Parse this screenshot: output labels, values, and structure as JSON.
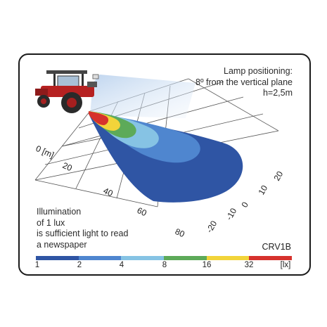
{
  "lamp_positioning": {
    "line1": "Lamp positioning:",
    "line2": "8º from the vertical plane",
    "line3": "h=2,5m"
  },
  "illumination_note": {
    "line1": "Illumination",
    "line2": "of 1 lux",
    "line3": "is sufficient light to read",
    "line4": "a newspaper"
  },
  "model": "CRV1B",
  "distance_axis": {
    "unit_label": "0 [m]",
    "ticks": [
      "20",
      "40",
      "60",
      "80"
    ]
  },
  "lateral_axis": {
    "ticks": [
      "20",
      "10",
      "0",
      "-10",
      "-20"
    ]
  },
  "scale": {
    "labels": [
      "1",
      "2",
      "4",
      "8",
      "16",
      "32",
      "[lx]"
    ],
    "colors": [
      "#2f55a4",
      "#4f86cf",
      "#86c3e4",
      "#5daa59",
      "#f2d43a",
      "#d6322d"
    ]
  },
  "zone_colors": {
    "lx1": "#2f55a4",
    "lx2": "#4f86cf",
    "lx4": "#86c3e4",
    "lx8": "#5daa59",
    "lx16": "#f2d43a",
    "lx32": "#d6322d"
  }
}
